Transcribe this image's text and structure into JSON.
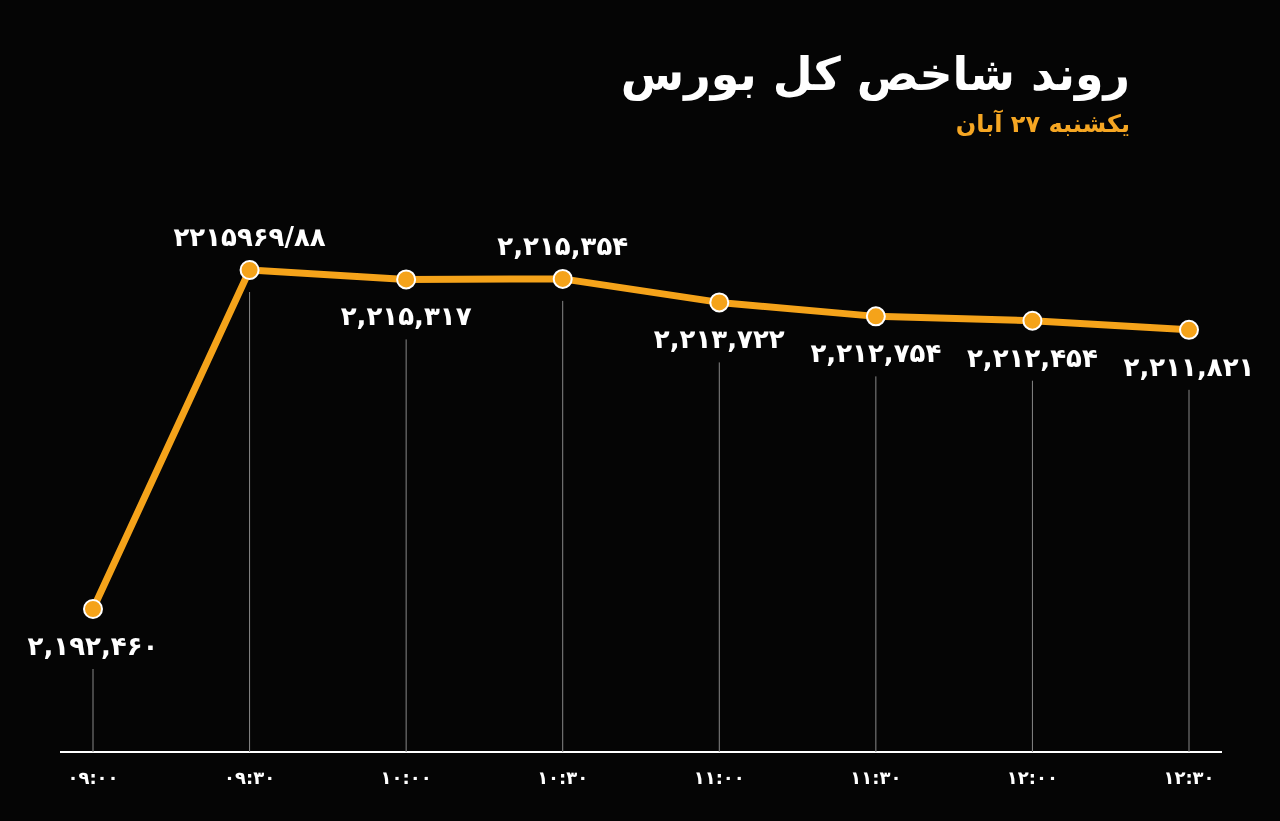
{
  "chart_data": {
    "type": "line",
    "title": "روند شاخص کل بورس",
    "subtitle": "یکشنبه ۲۷ آبان",
    "categories": [
      "۰۹:۰۰",
      "۰۹:۳۰",
      "۱۰:۰۰",
      "۱۰:۳۰",
      "۱۱:۰۰",
      "۱۱:۳۰",
      "۱۲:۰۰",
      "۱۲:۳۰"
    ],
    "series": [
      {
        "color": "#f5a31a",
        "values": [
          2192460,
          2215969.88,
          2215317,
          2215354,
          2213722,
          2212754,
          2212454,
          2211821
        ],
        "value_labels": [
          "۲,۱۹۲,۴۶۰",
          "۲۲۱۵۹۶۹/۸۸",
          "۲,۲۱۵,۳۱۷",
          "۲,۲۱۵,۳۵۴",
          "۲,۲۱۳,۷۲۲",
          "۲,۲۱۲,۷۵۴",
          "۲,۲۱۲,۴۵۴",
          "۲,۲۱۱,۸۲۱"
        ]
      }
    ],
    "marker": "circle",
    "grid": "x"
  }
}
